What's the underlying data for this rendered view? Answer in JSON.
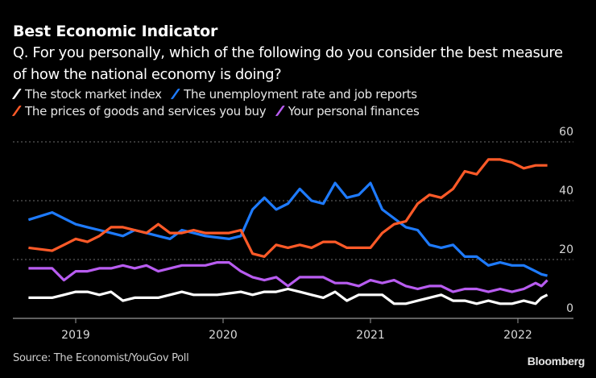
{
  "chart_data": {
    "type": "line",
    "title": "Best Economic Indicator",
    "subtitle": "Q. For you personally, which of the following do you consider the best measure of how the national economy is doing?",
    "xlabel": "",
    "ylabel": "",
    "ylim": [
      0,
      60
    ],
    "yticks": [
      0,
      20,
      40,
      60
    ],
    "ytick_labels": [
      "0",
      "20",
      "40",
      "60"
    ],
    "xticks": [
      2019,
      2020,
      2021,
      2022
    ],
    "xtick_labels": [
      "2019",
      "2020",
      "2021",
      "2022"
    ],
    "xlim": [
      2018.58,
      2022.38
    ],
    "grid": true,
    "legend_position": "top-left",
    "x": [
      2018.68,
      2018.84,
      2018.92,
      2019.0,
      2019.08,
      2019.16,
      2019.24,
      2019.32,
      2019.4,
      2019.48,
      2019.56,
      2019.64,
      2019.72,
      2019.8,
      2019.88,
      2019.96,
      2020.04,
      2020.12,
      2020.2,
      2020.28,
      2020.36,
      2020.44,
      2020.52,
      2020.6,
      2020.68,
      2020.76,
      2020.84,
      2020.92,
      2021.0,
      2021.08,
      2021.16,
      2021.24,
      2021.32,
      2021.4,
      2021.48,
      2021.56,
      2021.64,
      2021.72,
      2021.8,
      2021.88,
      2021.96,
      2022.04,
      2022.12,
      2022.16,
      2022.2
    ],
    "series": [
      {
        "name": "The stock market index",
        "color": "#ffffff",
        "values": [
          7,
          7,
          8,
          9,
          9,
          8,
          9,
          6,
          7,
          7,
          7,
          8,
          9,
          8,
          8,
          8,
          8.5,
          9,
          8,
          9,
          9,
          10,
          9,
          8,
          7,
          9,
          6,
          8,
          8,
          8,
          5,
          5,
          6,
          7,
          8,
          6,
          6,
          5,
          6,
          5,
          5,
          6,
          5,
          7,
          8
        ]
      },
      {
        "name": "The unemployment rate and job reports",
        "color": "#1e7bff",
        "values": [
          33.5,
          36,
          34,
          32,
          31,
          30,
          29,
          28,
          30,
          29,
          28,
          27,
          30,
          29,
          28,
          27.5,
          27,
          28,
          37,
          41,
          37,
          39,
          44,
          40,
          39,
          46,
          41,
          42,
          46,
          37,
          34,
          31,
          30,
          25,
          24,
          25,
          21,
          21,
          18,
          19,
          18,
          18,
          16,
          15,
          14.5
        ]
      },
      {
        "name": "The prices of goods and services you buy",
        "color": "#ff5a28",
        "values": [
          24,
          23,
          25,
          27,
          26,
          28,
          31,
          31,
          30,
          29,
          32,
          29,
          29,
          30,
          29,
          29,
          29,
          30,
          22,
          21,
          25,
          24,
          25,
          24,
          26,
          26,
          24,
          24,
          24,
          29,
          32,
          33,
          39,
          42,
          41,
          44,
          50,
          49,
          54,
          54,
          53,
          51,
          52,
          52,
          52
        ]
      },
      {
        "name": "Your personal finances",
        "color": "#b85cf0",
        "values": [
          17,
          17,
          13,
          16,
          16,
          17,
          17,
          18,
          17,
          18,
          16,
          17,
          18,
          18,
          18,
          19,
          19,
          16,
          14,
          13,
          14,
          11,
          14,
          14,
          14,
          12,
          12,
          11,
          13,
          12,
          13,
          11,
          10,
          11,
          11,
          9,
          10,
          10,
          9,
          10,
          9,
          10,
          12,
          11,
          13
        ]
      }
    ]
  },
  "legend": [
    {
      "label": "The stock market index",
      "color": "#ffffff"
    },
    {
      "label": "The unemployment rate and job reports",
      "color": "#1e7bff"
    },
    {
      "label": "The prices of goods and services you buy",
      "color": "#ff5a28"
    },
    {
      "label": "Your personal finances",
      "color": "#b85cf0"
    }
  ],
  "footer": {
    "source": "Source: The Economist/YouGov Poll",
    "brand": "Bloomberg"
  }
}
